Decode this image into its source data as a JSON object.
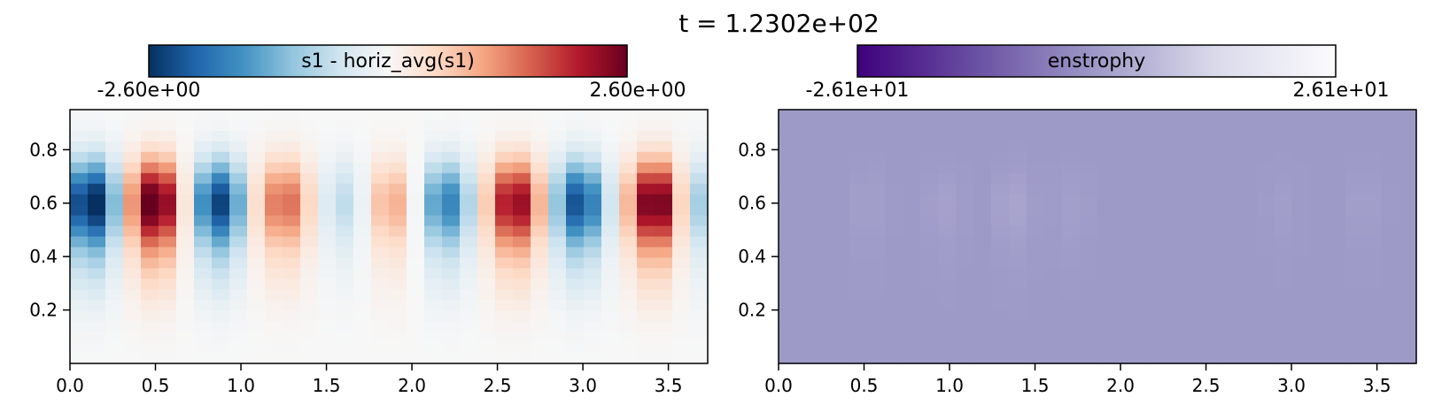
{
  "figure": {
    "title": "t = 1.2302e+02"
  },
  "chart_data": [
    {
      "type": "heatmap",
      "colormap": "RdBu_r",
      "colorbar": {
        "label": "s1 - horiz_avg(s1)",
        "min_label": "-2.60e+00",
        "max_label": "2.60e+00",
        "vmin": -2.6,
        "vmax": 2.6
      },
      "xlim": [
        0,
        3.73
      ],
      "ylim": [
        0,
        0.95
      ],
      "xticks": [
        "0.0",
        "0.5",
        "1.0",
        "1.5",
        "2.0",
        "2.5",
        "3.0",
        "3.5"
      ],
      "yticks": [
        "0.2",
        "0.4",
        "0.6",
        "0.8"
      ],
      "xtick_values": [
        0,
        0.5,
        1.0,
        1.5,
        2.0,
        2.5,
        3.0,
        3.5
      ],
      "ytick_values": [
        0.2,
        0.4,
        0.6,
        0.8
      ],
      "grid": false,
      "vertical_profile": {
        "center": 0.61,
        "width": 0.15,
        "baseline_height": 0.27
      },
      "cells_x": 36,
      "cells_y": 24,
      "columns": [
        {
          "x": 0.12,
          "value": -2.6
        },
        {
          "x": 0.5,
          "value": 2.6
        },
        {
          "x": 0.87,
          "value": -2.2
        },
        {
          "x": 1.25,
          "value": 1.4
        },
        {
          "x": 1.62,
          "value": -0.6
        },
        {
          "x": 1.87,
          "value": 0.9
        },
        {
          "x": 2.2,
          "value": -1.6
        },
        {
          "x": 2.6,
          "value": 2.2
        },
        {
          "x": 2.98,
          "value": -2.1
        },
        {
          "x": 3.42,
          "value": 2.5
        },
        {
          "x": 3.73,
          "value": -0.9
        }
      ],
      "column_halfwidth": 0.17
    },
    {
      "type": "heatmap",
      "colormap": "Purples_r",
      "colorbar": {
        "label": "enstrophy",
        "min_label": "-2.61e+01",
        "max_label": "2.61e+01",
        "vmin": -26.1,
        "vmax": 26.1
      },
      "xlim": [
        0,
        3.73
      ],
      "ylim": [
        0,
        0.95
      ],
      "xticks": [
        "0.0",
        "0.5",
        "1.0",
        "1.5",
        "2.0",
        "2.5",
        "3.0",
        "3.5"
      ],
      "yticks": [
        "0.2",
        "0.4",
        "0.6",
        "0.8"
      ],
      "xtick_values": [
        0,
        0.5,
        1.0,
        1.5,
        2.0,
        2.5,
        3.0,
        3.5
      ],
      "ytick_values": [
        0.2,
        0.4,
        0.6,
        0.8
      ],
      "grid": false,
      "background_value": 0.0,
      "vertical_profile": {
        "center": 0.6,
        "width": 0.13,
        "baseline_height": 0.27
      },
      "cells_x": 36,
      "cells_y": 24,
      "columns": [
        {
          "x": 0.52,
          "value": 1.0
        },
        {
          "x": 0.97,
          "value": 1.3
        },
        {
          "x": 1.37,
          "value": 2.0
        },
        {
          "x": 1.72,
          "value": 1.0
        },
        {
          "x": 2.95,
          "value": 0.7
        },
        {
          "x": 3.42,
          "value": 0.9
        }
      ],
      "column_halfwidth": 0.13
    }
  ]
}
